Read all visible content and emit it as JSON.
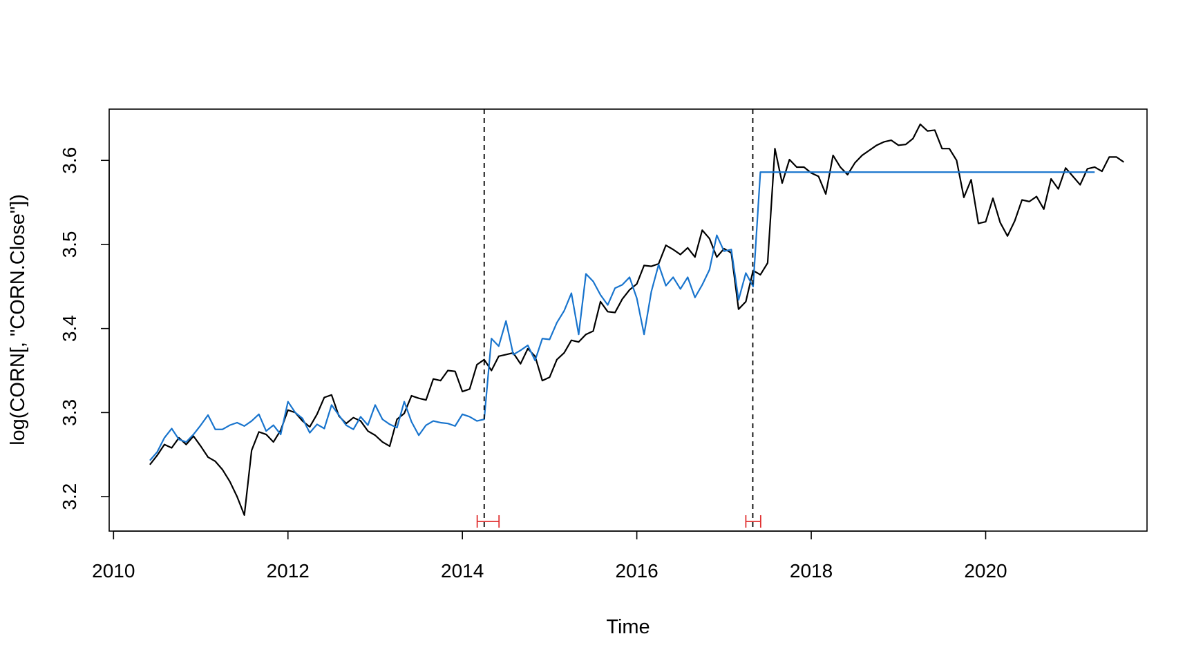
{
  "chart_data": {
    "type": "line",
    "xlabel": "Time",
    "ylabel": "log(CORN[, \"CORN.Close\"])",
    "xlim": [
      2009.95,
      2021.85
    ],
    "ylim": [
      3.159,
      3.661
    ],
    "x_ticks": [
      2010,
      2012,
      2014,
      2016,
      2018,
      2020
    ],
    "x_tick_labels": [
      "2010",
      "2012",
      "2014",
      "2016",
      "2018",
      "2020"
    ],
    "y_ticks": [
      3.2,
      3.3,
      3.4,
      3.5,
      3.6
    ],
    "y_tick_labels": [
      "3.2",
      "3.3",
      "3.4",
      "3.5",
      "3.6"
    ],
    "x_start": 2010.4167,
    "x_step": 0.0833333,
    "grid": false,
    "legend": "none",
    "breakpoints": [
      2014.25,
      2017.33
    ],
    "confidence_intervals": [
      [
        2014.17,
        2014.42
      ],
      [
        2017.25,
        2017.42
      ]
    ],
    "series": [
      {
        "color": "#000000",
        "values": [
          3.238,
          3.249,
          3.262,
          3.258,
          3.27,
          3.262,
          3.272,
          3.26,
          3.247,
          3.242,
          3.232,
          3.218,
          3.2,
          3.178,
          3.255,
          3.277,
          3.274,
          3.265,
          3.279,
          3.303,
          3.3,
          3.29,
          3.283,
          3.298,
          3.318,
          3.321,
          3.296,
          3.287,
          3.294,
          3.29,
          3.278,
          3.273,
          3.265,
          3.26,
          3.292,
          3.299,
          3.32,
          3.317,
          3.315,
          3.34,
          3.338,
          3.35,
          3.349,
          3.325,
          3.328,
          3.357,
          3.363,
          3.35,
          3.367,
          3.369,
          3.371,
          3.358,
          3.376,
          3.367,
          3.338,
          3.342,
          3.363,
          3.371,
          3.386,
          3.384,
          3.393,
          3.397,
          3.432,
          3.42,
          3.419,
          3.435,
          3.446,
          3.453,
          3.475,
          3.474,
          3.477,
          3.499,
          3.494,
          3.488,
          3.496,
          3.485,
          3.517,
          3.507,
          3.485,
          3.495,
          3.49,
          3.423,
          3.432,
          3.469,
          3.464,
          3.478,
          3.614,
          3.573,
          3.601,
          3.592,
          3.592,
          3.585,
          3.581,
          3.56,
          3.606,
          3.592,
          3.583,
          3.597,
          3.606,
          3.612,
          3.618,
          3.622,
          3.624,
          3.618,
          3.619,
          3.626,
          3.643,
          3.635,
          3.636,
          3.614,
          3.614,
          3.6,
          3.556,
          3.577,
          3.525,
          3.527,
          3.555,
          3.526,
          3.51,
          3.528,
          3.553,
          3.551,
          3.557,
          3.542,
          3.578,
          3.566,
          3.591,
          3.581,
          3.571,
          3.59,
          3.592,
          3.587,
          3.604,
          3.604,
          3.598
        ]
      },
      {
        "color": "#1874CD",
        "values": [
          3.243,
          3.253,
          3.27,
          3.281,
          3.268,
          3.265,
          3.274,
          3.285,
          3.297,
          3.28,
          3.28,
          3.285,
          3.288,
          3.284,
          3.29,
          3.298,
          3.278,
          3.285,
          3.274,
          3.313,
          3.3,
          3.293,
          3.276,
          3.286,
          3.281,
          3.309,
          3.297,
          3.285,
          3.28,
          3.295,
          3.285,
          3.309,
          3.292,
          3.286,
          3.282,
          3.313,
          3.289,
          3.273,
          3.285,
          3.29,
          3.288,
          3.287,
          3.284,
          3.298,
          3.295,
          3.29,
          3.292,
          3.388,
          3.379,
          3.409,
          3.369,
          3.374,
          3.38,
          3.362,
          3.388,
          3.387,
          3.407,
          3.421,
          3.442,
          3.393,
          3.465,
          3.456,
          3.44,
          3.428,
          3.448,
          3.452,
          3.461,
          3.436,
          3.393,
          3.444,
          3.476,
          3.451,
          3.461,
          3.447,
          3.461,
          3.437,
          3.452,
          3.47,
          3.511,
          3.492,
          3.494,
          3.434,
          3.466,
          3.45,
          3.586,
          3.586,
          3.586,
          3.586,
          3.586,
          3.586,
          3.586,
          3.586,
          3.586,
          3.586,
          3.586,
          3.586,
          3.586,
          3.586,
          3.586,
          3.586,
          3.586,
          3.586,
          3.586,
          3.586,
          3.586,
          3.586,
          3.586,
          3.586,
          3.586,
          3.586,
          3.586,
          3.586,
          3.586,
          3.586,
          3.586,
          3.586,
          3.586,
          3.586,
          3.586,
          3.586,
          3.586,
          3.586,
          3.586,
          3.586,
          3.586,
          3.586,
          3.586,
          3.586,
          3.586,
          3.586,
          3.586
        ]
      }
    ],
    "colors": {
      "breakpoint_line": "#000000",
      "confidence_interval": "#E03030"
    }
  }
}
